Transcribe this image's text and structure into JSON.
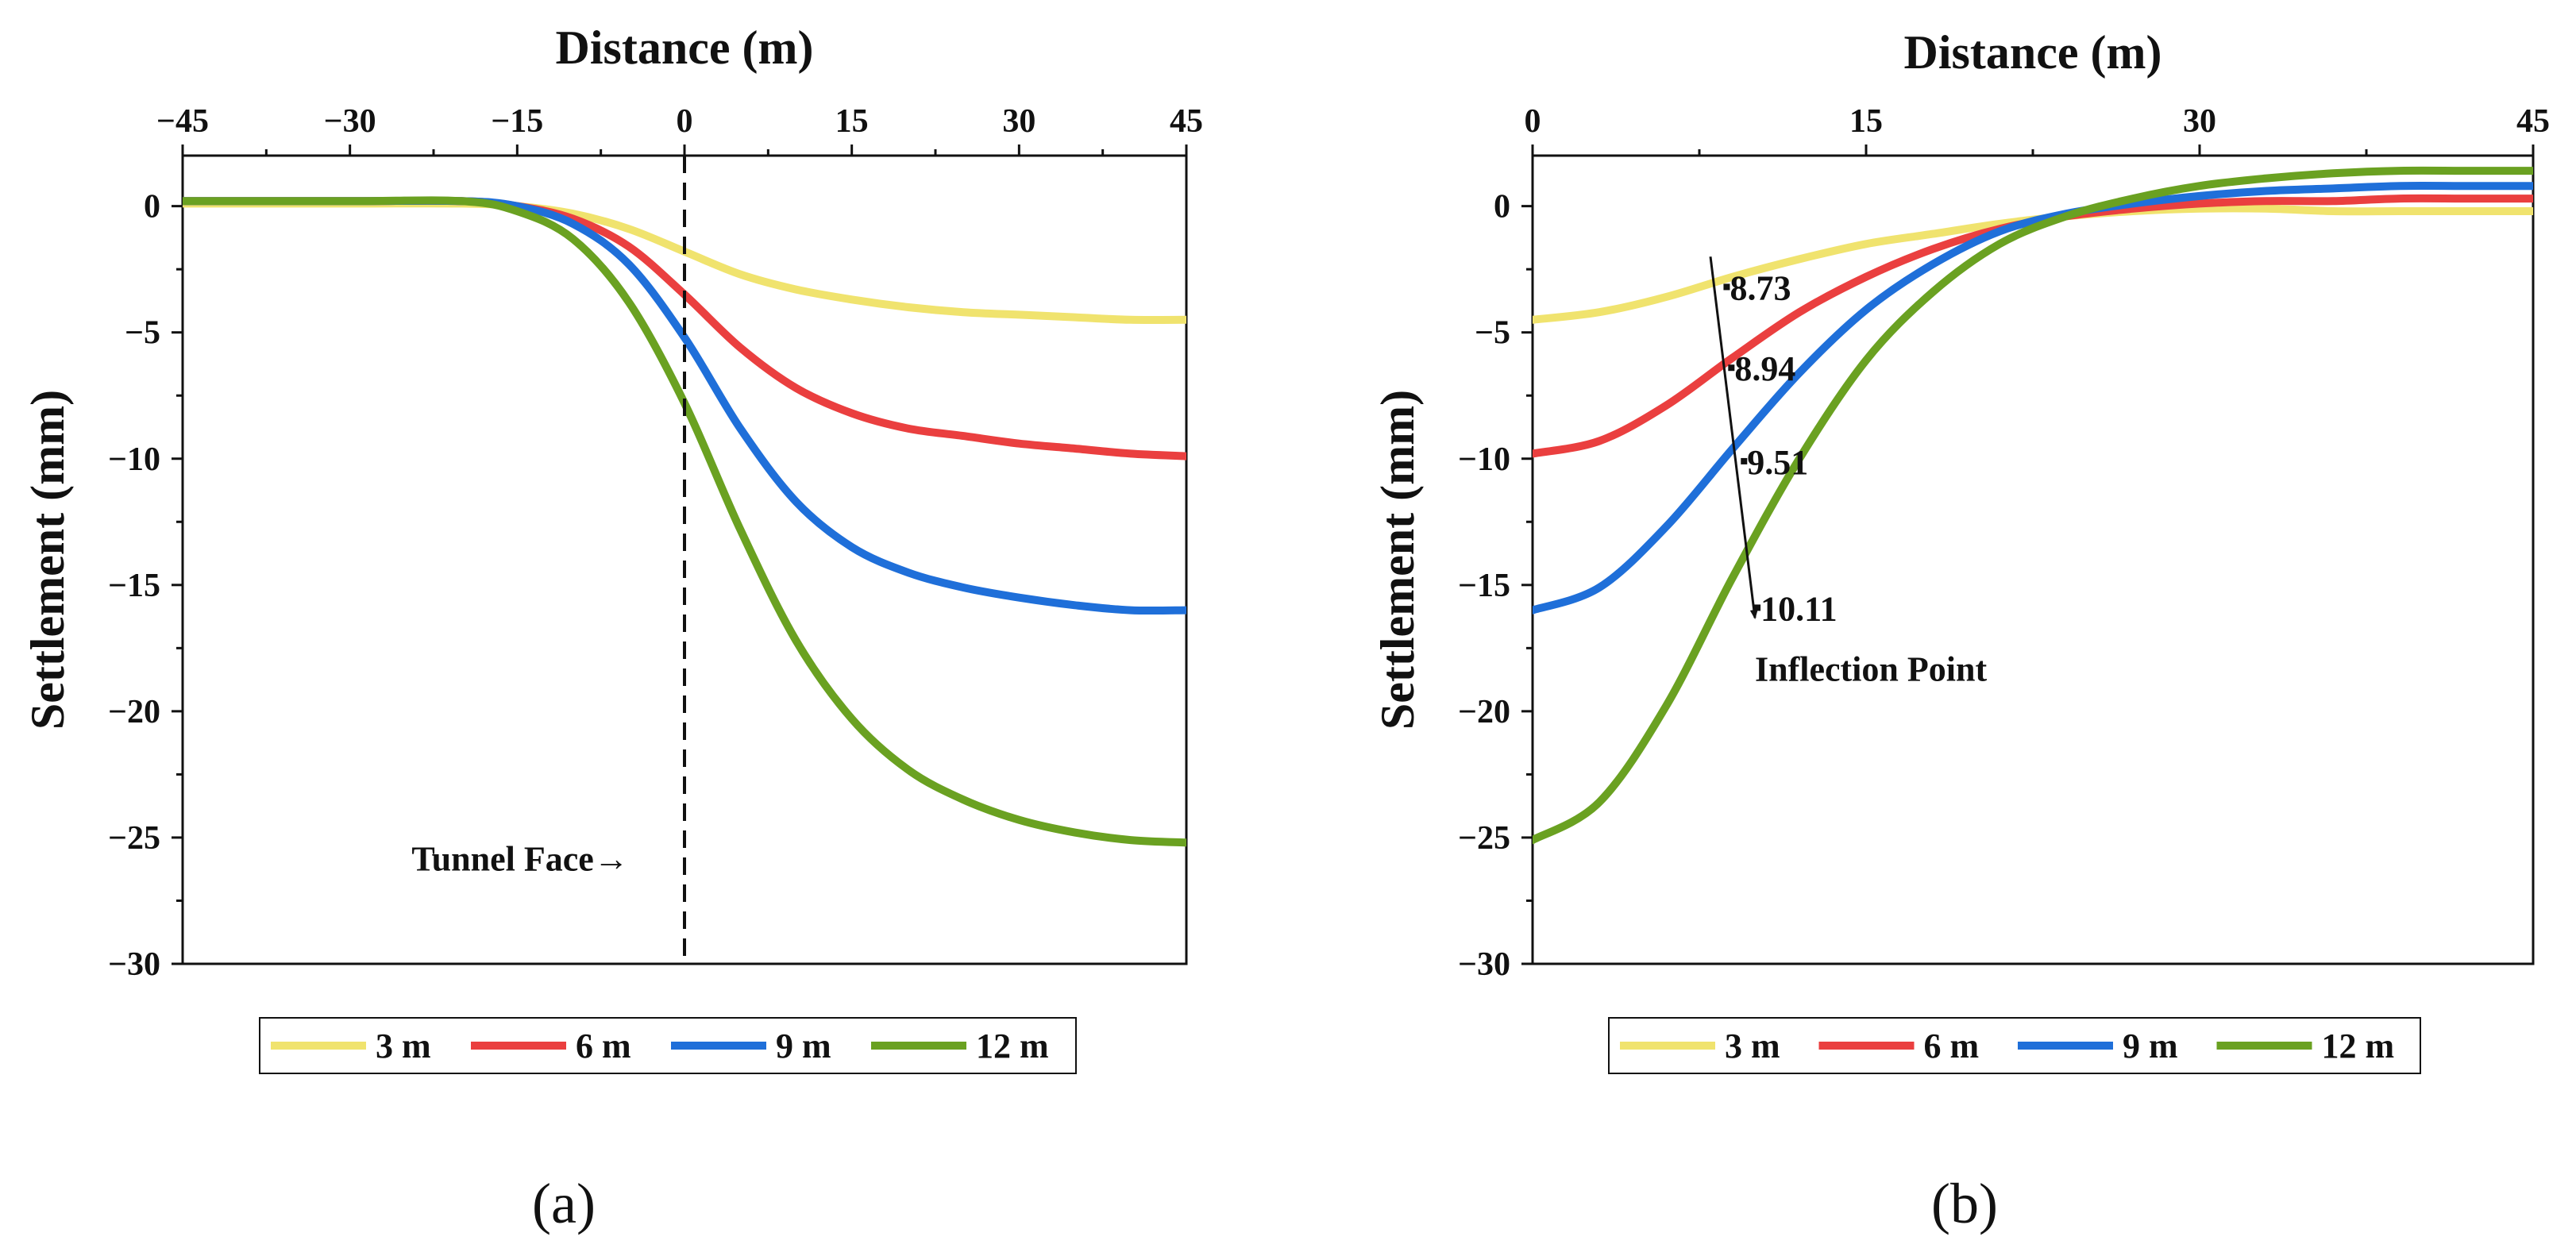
{
  "chart_data": [
    {
      "type": "line",
      "panel_label": "(a)",
      "xlabel": "Distance (m)",
      "ylabel": "Settlement (mm)",
      "x_axis_position": "top",
      "xlim": [
        -45,
        45
      ],
      "ylim": [
        -30,
        2
      ],
      "xticks": [
        -45,
        -30,
        -15,
        0,
        15,
        30,
        45
      ],
      "yticks": [
        0,
        -5,
        -10,
        -15,
        -20,
        -25,
        -30
      ],
      "grid": false,
      "legend_position": "bottom-outside",
      "series": [
        {
          "name": "3 m",
          "color": "#f0e36e",
          "x": [
            -45,
            -30,
            -20,
            -15,
            -10,
            -5,
            0,
            5,
            10,
            15,
            20,
            25,
            30,
            35,
            40,
            45
          ],
          "y": [
            0.1,
            0.1,
            0.1,
            0.0,
            -0.3,
            -0.9,
            -1.8,
            -2.7,
            -3.3,
            -3.7,
            -4.0,
            -4.2,
            -4.3,
            -4.4,
            -4.5,
            -4.5
          ]
        },
        {
          "name": "6 m",
          "color": "#ea3f3f",
          "x": [
            -45,
            -30,
            -20,
            -15,
            -10,
            -5,
            0,
            5,
            10,
            15,
            20,
            25,
            30,
            35,
            40,
            45
          ],
          "y": [
            0.2,
            0.2,
            0.2,
            0.0,
            -0.5,
            -1.6,
            -3.5,
            -5.6,
            -7.2,
            -8.2,
            -8.8,
            -9.1,
            -9.4,
            -9.6,
            -9.8,
            -9.9
          ]
        },
        {
          "name": "9 m",
          "color": "#1f6fd9",
          "x": [
            -45,
            -30,
            -20,
            -15,
            -10,
            -5,
            0,
            5,
            10,
            15,
            20,
            25,
            30,
            35,
            40,
            45
          ],
          "y": [
            0.2,
            0.2,
            0.2,
            0.0,
            -0.7,
            -2.3,
            -5.2,
            -8.8,
            -11.7,
            -13.5,
            -14.5,
            -15.1,
            -15.5,
            -15.8,
            -16.0,
            -16.0
          ]
        },
        {
          "name": "12 m",
          "color": "#6aa121",
          "x": [
            -45,
            -30,
            -20,
            -15,
            -10,
            -5,
            0,
            5,
            10,
            15,
            20,
            25,
            30,
            35,
            40,
            45
          ],
          "y": [
            0.2,
            0.2,
            0.2,
            -0.2,
            -1.3,
            -3.8,
            -7.8,
            -12.8,
            -17.2,
            -20.3,
            -22.3,
            -23.5,
            -24.3,
            -24.8,
            -25.1,
            -25.2
          ]
        }
      ],
      "annotations": [
        {
          "text": "Tunnel Face→",
          "x": -5,
          "y": -26.3
        },
        {
          "type": "vline",
          "x": 0,
          "style": "dashed"
        }
      ]
    },
    {
      "type": "line",
      "panel_label": "(b)",
      "xlabel": "Distance (m)",
      "ylabel": "Settlement (mm)",
      "x_axis_position": "top",
      "xlim": [
        0,
        45
      ],
      "ylim": [
        -30,
        2
      ],
      "xticks": [
        0,
        15,
        30,
        45
      ],
      "yticks": [
        0,
        -5,
        -10,
        -15,
        -20,
        -25,
        -30
      ],
      "grid": false,
      "legend_position": "bottom-outside",
      "series": [
        {
          "name": "3 m",
          "color": "#f0e36e",
          "x": [
            0,
            3,
            6,
            9,
            12,
            15,
            18,
            21,
            24,
            27,
            30,
            33,
            36,
            39,
            42,
            45
          ],
          "y": [
            -4.5,
            -4.2,
            -3.6,
            -2.8,
            -2.1,
            -1.5,
            -1.1,
            -0.7,
            -0.4,
            -0.2,
            -0.1,
            -0.1,
            -0.2,
            -0.2,
            -0.2,
            -0.2
          ]
        },
        {
          "name": "6 m",
          "color": "#ea3f3f",
          "x": [
            0,
            3,
            6,
            9,
            12,
            15,
            18,
            21,
            24,
            27,
            30,
            33,
            36,
            39,
            42,
            45
          ],
          "y": [
            -9.8,
            -9.3,
            -7.9,
            -6.0,
            -4.2,
            -2.8,
            -1.7,
            -0.9,
            -0.4,
            -0.1,
            0.1,
            0.2,
            0.2,
            0.3,
            0.3,
            0.3
          ]
        },
        {
          "name": "9 m",
          "color": "#1f6fd9",
          "x": [
            0,
            3,
            6,
            9,
            12,
            15,
            18,
            21,
            24,
            27,
            30,
            33,
            36,
            39,
            42,
            45
          ],
          "y": [
            -16.0,
            -15.1,
            -12.7,
            -9.6,
            -6.6,
            -4.1,
            -2.3,
            -1.0,
            -0.3,
            0.1,
            0.4,
            0.6,
            0.7,
            0.8,
            0.8,
            0.8
          ]
        },
        {
          "name": "12 m",
          "color": "#6aa121",
          "x": [
            0,
            3,
            6,
            9,
            12,
            15,
            18,
            21,
            24,
            27,
            30,
            33,
            36,
            39,
            42,
            45
          ],
          "y": [
            -25.1,
            -23.6,
            -19.8,
            -14.7,
            -10.0,
            -6.1,
            -3.4,
            -1.5,
            -0.4,
            0.3,
            0.8,
            1.1,
            1.3,
            1.4,
            1.4,
            1.4
          ]
        }
      ],
      "annotations": [
        {
          "text": "8.73",
          "x": 8.73,
          "y": -3.2
        },
        {
          "text": "8.94",
          "x": 8.94,
          "y": -6.4
        },
        {
          "text": "9.51",
          "x": 9.51,
          "y": -10.1
        },
        {
          "text": "10.11",
          "x": 10.11,
          "y": -15.9
        },
        {
          "text": "Inflection Point",
          "x": 10.0,
          "y": -18.8
        },
        {
          "type": "arrow",
          "from": [
            8.0,
            -2.0
          ],
          "to": [
            10.0,
            -16.3
          ]
        }
      ]
    }
  ]
}
